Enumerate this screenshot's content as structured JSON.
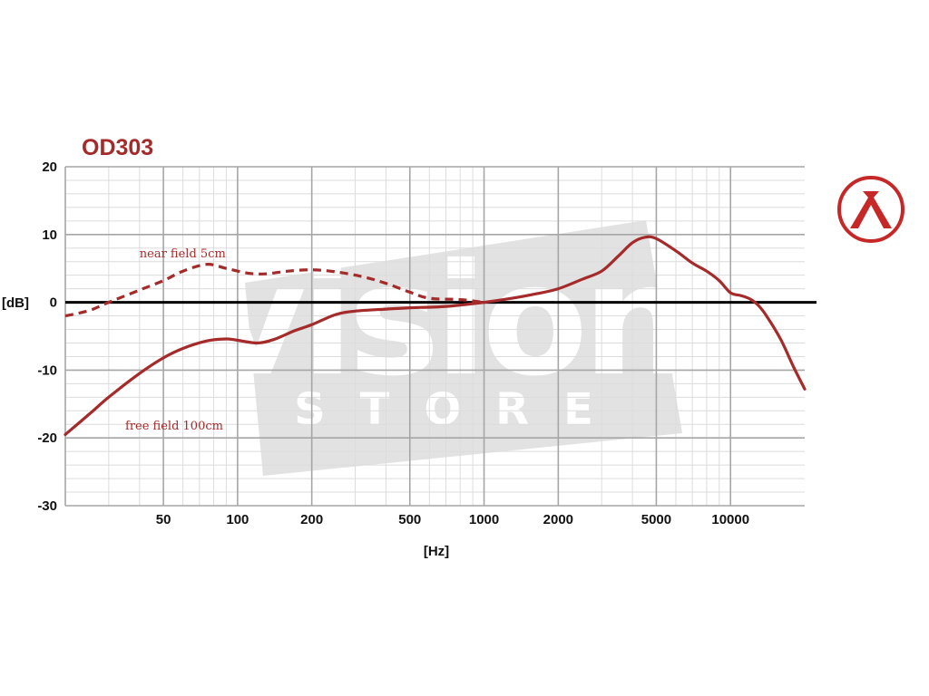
{
  "colors": {
    "curve": "#a52a2a",
    "grid_major": "#a6a6a6",
    "grid_minor": "#dcdcdc",
    "zero_line": "#000000",
    "watermark_bg": "#e2e2e2",
    "logo": "#c62828"
  },
  "watermark": {
    "big_text": "vision",
    "small_text": "STORE"
  },
  "logo_icon": "lambda-circle-logo",
  "chart_data": {
    "type": "line",
    "title": "OD303",
    "xlabel": "[Hz]",
    "ylabel": "[dB]",
    "x_scale": "log",
    "xlim": [
      20,
      20000
    ],
    "ylim": [
      -30,
      20
    ],
    "x_ticks": [
      50,
      100,
      200,
      500,
      1000,
      2000,
      5000,
      10000
    ],
    "x_tick_labels": [
      "50",
      "100",
      "200",
      "500",
      "1000",
      "2000",
      "5000",
      "10000"
    ],
    "y_ticks": [
      20,
      10,
      0,
      -10,
      -20,
      -30
    ],
    "y_tick_labels": [
      "20",
      "10",
      "0",
      "-10",
      "-20",
      "-30"
    ],
    "grid": true,
    "series": [
      {
        "name": "near field 5cm",
        "style": "dashed",
        "points": [
          [
            20,
            -2
          ],
          [
            25,
            -1.2
          ],
          [
            30,
            0
          ],
          [
            40,
            1.8
          ],
          [
            50,
            3.2
          ],
          [
            60,
            4.6
          ],
          [
            75,
            5.6
          ],
          [
            90,
            5.0
          ],
          [
            110,
            4.3
          ],
          [
            130,
            4.2
          ],
          [
            160,
            4.6
          ],
          [
            200,
            4.8
          ],
          [
            250,
            4.5
          ],
          [
            320,
            3.8
          ],
          [
            400,
            2.8
          ],
          [
            500,
            1.5
          ],
          [
            600,
            0.6
          ],
          [
            800,
            0.4
          ],
          [
            1000,
            0
          ]
        ]
      },
      {
        "name": "free field 100cm",
        "style": "solid",
        "points": [
          [
            20,
            -19.5
          ],
          [
            25,
            -16.5
          ],
          [
            30,
            -14
          ],
          [
            40,
            -10.5
          ],
          [
            50,
            -8.2
          ],
          [
            60,
            -6.8
          ],
          [
            75,
            -5.7
          ],
          [
            90,
            -5.4
          ],
          [
            100,
            -5.6
          ],
          [
            120,
            -6.0
          ],
          [
            140,
            -5.5
          ],
          [
            170,
            -4.2
          ],
          [
            200,
            -3.3
          ],
          [
            250,
            -1.8
          ],
          [
            300,
            -1.3
          ],
          [
            400,
            -1.0
          ],
          [
            500,
            -0.8
          ],
          [
            700,
            -0.6
          ],
          [
            1000,
            0
          ],
          [
            1300,
            0.6
          ],
          [
            1600,
            1.2
          ],
          [
            2000,
            2.0
          ],
          [
            2500,
            3.4
          ],
          [
            3000,
            4.6
          ],
          [
            3500,
            6.8
          ],
          [
            4000,
            8.8
          ],
          [
            4500,
            9.6
          ],
          [
            5000,
            9.4
          ],
          [
            6000,
            7.6
          ],
          [
            7000,
            5.8
          ],
          [
            8000,
            4.6
          ],
          [
            9000,
            3.2
          ],
          [
            10000,
            1.4
          ],
          [
            11000,
            1.0
          ],
          [
            12000,
            0.5
          ],
          [
            13000,
            -0.5
          ],
          [
            14000,
            -2
          ],
          [
            16000,
            -5.5
          ],
          [
            18000,
            -9.5
          ],
          [
            20000,
            -12.8
          ]
        ]
      }
    ],
    "annotations": [
      {
        "text": "near field 5cm",
        "x": 40,
        "y": 6.6
      },
      {
        "text": "free field 100cm",
        "x": 35,
        "y": -18.8
      }
    ]
  }
}
